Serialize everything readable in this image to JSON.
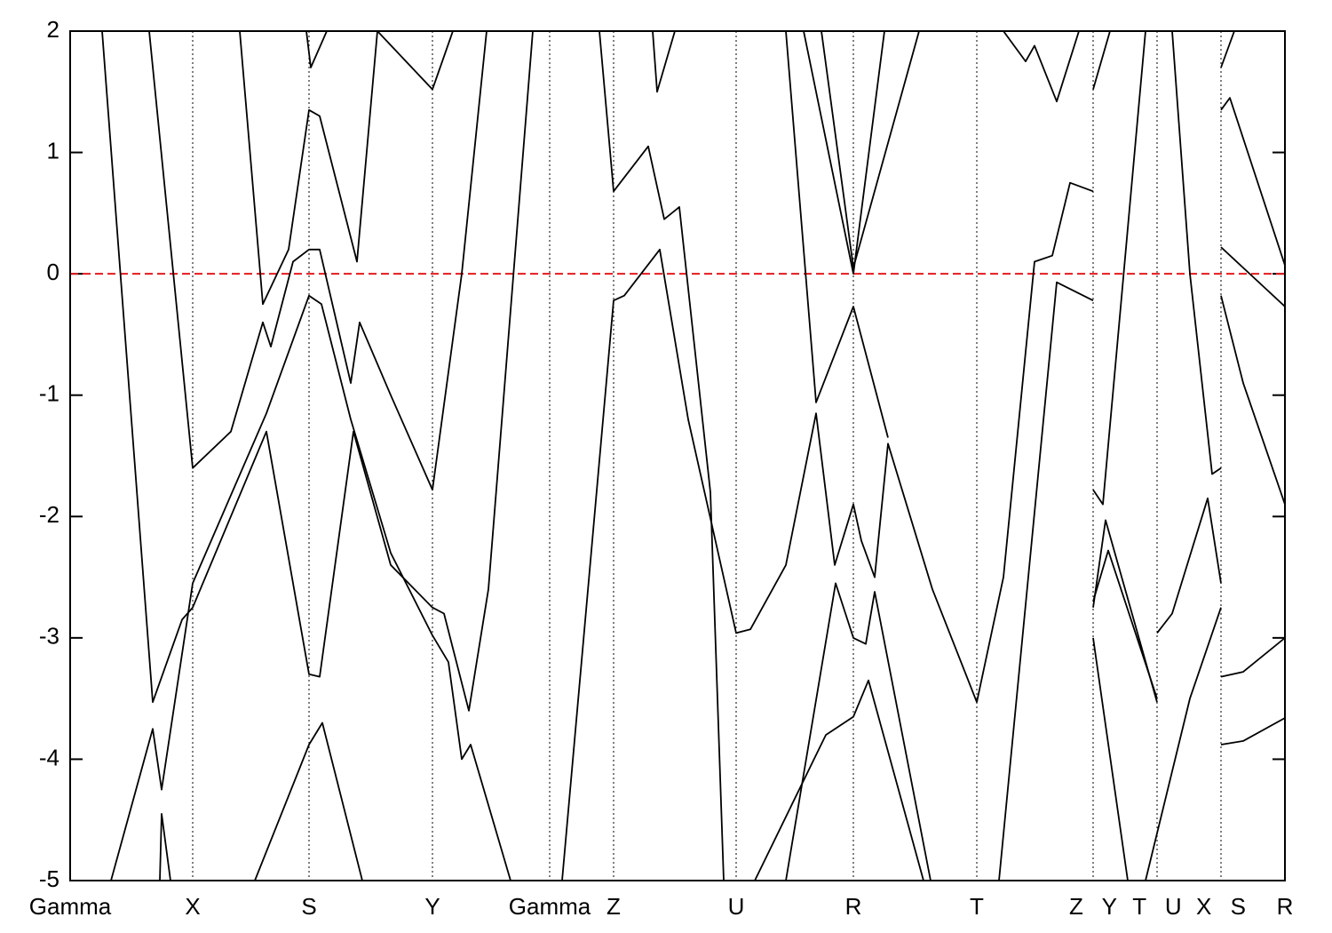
{
  "chart_data": {
    "type": "line",
    "color": "#000000",
    "xlim": [
      0,
      13.68
    ],
    "ylim": [
      -5,
      2
    ],
    "yticks": [
      -5,
      -4,
      -3,
      -2,
      -1,
      0,
      1,
      2
    ],
    "xticks": [
      {
        "value": 0,
        "label": "Gamma"
      },
      {
        "value": 1.38,
        "label": "X"
      },
      {
        "value": 2.69,
        "label": "S"
      },
      {
        "value": 4.08,
        "label": "Y"
      },
      {
        "value": 5.4,
        "label": "Gamma"
      },
      {
        "value": 6.12,
        "label": "Z"
      },
      {
        "value": 7.5,
        "label": "U"
      },
      {
        "value": 8.82,
        "label": "R"
      },
      {
        "value": 10.21,
        "label": "T"
      },
      {
        "value": 11.52,
        "label": "Z Y"
      },
      {
        "value": 12.24,
        "label": "T U"
      },
      {
        "value": 12.96,
        "label": "X S"
      },
      {
        "value": 13.68,
        "label": "R"
      }
    ],
    "reference_line": {
      "value": 0,
      "color": "#e41a1c"
    },
    "series": [
      {
        "x": [
          0.36,
          0.93,
          1.26,
          1.38,
          2.21,
          2.69,
          2.81,
          3.19,
          3.61,
          4.08,
          4.21,
          4.49,
          4.71,
          5.21
        ],
        "values": [
          2,
          -3.53,
          -2.85,
          -2.75,
          -1.3,
          -3.3,
          -3.32,
          -1.3,
          -2.4,
          -2.75,
          -2.8,
          -3.6,
          -2.6,
          2
        ]
      },
      {
        "x": [
          0.89,
          1.38,
          1.81,
          2.17,
          2.26,
          2.51,
          2.69,
          2.81,
          3.16,
          3.26,
          3.61,
          4.08,
          4.41,
          4.69
        ],
        "values": [
          2,
          -1.6,
          -1.3,
          -0.4,
          -0.6,
          0.1,
          0.2,
          0.2,
          -0.9,
          -0.4,
          -1.0,
          -1.78,
          0,
          2
        ]
      },
      {
        "x": [
          0.46,
          0.93,
          1.03,
          1.38,
          2.21,
          2.69,
          2.83,
          3.16,
          3.61,
          4.08,
          4.26,
          4.41,
          4.51,
          4.96
        ],
        "values": [
          -5,
          -3.75,
          -4.25,
          -2.55,
          -1.15,
          -0.18,
          -0.25,
          -1.2,
          -2.3,
          -2.98,
          -3.2,
          -4.0,
          -3.88,
          -5
        ]
      },
      {
        "x": [
          1.01,
          1.03,
          1.13
        ],
        "values": [
          -5,
          -4.45,
          -5
        ]
      },
      {
        "x": [
          2.08,
          2.69,
          2.84,
          3.29
        ],
        "values": [
          -5,
          -3.88,
          -3.7,
          -5
        ]
      },
      {
        "x": [
          1.91,
          2.17,
          2.46,
          2.69,
          2.81,
          3.23,
          3.46
        ],
        "values": [
          2,
          -0.25,
          0.2,
          1.35,
          1.3,
          0.1,
          2
        ]
      },
      {
        "x": [
          2.66,
          2.71,
          2.89
        ],
        "values": [
          2,
          1.7,
          2
        ]
      },
      {
        "x": [
          3.46,
          4.08,
          4.31
        ],
        "values": [
          2,
          1.52,
          2
        ]
      },
      {
        "x": [
          5.54,
          6.12,
          6.24,
          6.64,
          6.96,
          7.5,
          7.66,
          8.06,
          8.4,
          8.61,
          8.82,
          8.91,
          9.06,
          9.21,
          9.71,
          10.21,
          10.51,
          10.86,
          11.06,
          11.26,
          11.52
        ],
        "values": [
          -5,
          -0.22,
          -0.18,
          0.2,
          -1.2,
          -2.96,
          -2.93,
          -2.4,
          -1.15,
          -2.4,
          -1.9,
          -2.2,
          -2.5,
          -1.4,
          -2.6,
          -3.53,
          -2.5,
          0.1,
          0.15,
          0.75,
          0.68
        ]
      },
      {
        "x": [
          5.96,
          6.12,
          6.51,
          6.69,
          6.86,
          7.21,
          7.36
        ],
        "values": [
          2,
          0.68,
          1.05,
          0.45,
          0.55,
          -1.8,
          -5
        ]
      },
      {
        "x": [
          6.56,
          6.61,
          6.81
        ],
        "values": [
          2,
          1.5,
          2
        ]
      },
      {
        "x": [
          8.06,
          8.4,
          8.82,
          9.21
        ],
        "values": [
          2,
          -1.06,
          -0.27,
          -1.35
        ]
      },
      {
        "x": [
          8.26,
          8.82,
          9.17
        ],
        "values": [
          2,
          0,
          2
        ]
      },
      {
        "x": [
          8.46,
          8.82,
          9.56
        ],
        "values": [
          2,
          0.05,
          2
        ]
      },
      {
        "x": [
          8.06,
          8.62,
          8.82,
          8.96,
          9.06,
          9.69
        ],
        "values": [
          -5,
          -2.55,
          -3.0,
          -3.05,
          -2.62,
          -5
        ]
      },
      {
        "x": [
          7.71,
          8.51,
          8.82,
          8.99,
          9.61
        ],
        "values": [
          -5,
          -3.8,
          -3.65,
          -3.35,
          -5
        ]
      },
      {
        "x": [
          10.46,
          11.11,
          11.52
        ],
        "values": [
          -5,
          -0.07,
          -0.22
        ]
      },
      {
        "x": [
          10.51,
          10.76,
          10.86,
          11.11,
          11.36
        ],
        "values": [
          2,
          1.75,
          1.88,
          1.42,
          2
        ]
      },
      {
        "x": [
          11.52,
          11.71
        ],
        "values": [
          1.52,
          2
        ]
      },
      {
        "x": [
          11.52,
          11.63,
          12.11
        ],
        "values": [
          -1.78,
          -1.9,
          2
        ]
      },
      {
        "x": [
          11.52,
          11.66,
          12.24
        ],
        "values": [
          -2.75,
          -2.03,
          -3.53
        ]
      },
      {
        "x": [
          11.52,
          11.91
        ],
        "values": [
          -3.0,
          -5
        ]
      },
      {
        "x": [
          11.52,
          11.69,
          12.24
        ],
        "values": [
          -2.7,
          -2.28,
          -3.5
        ]
      },
      {
        "x": [
          12.41,
          12.61,
          12.86,
          12.96
        ],
        "values": [
          2,
          0,
          -1.65,
          -1.6
        ]
      },
      {
        "x": [
          12.24,
          12.41,
          12.81,
          12.96
        ],
        "values": [
          -2.96,
          -2.8,
          -1.85,
          -2.55
        ]
      },
      {
        "x": [
          12.11,
          12.61,
          12.96
        ],
        "values": [
          -5,
          -3.5,
          -2.75
        ]
      },
      {
        "x": [
          12.96,
          13.11
        ],
        "values": [
          1.7,
          2
        ]
      },
      {
        "x": [
          12.96,
          13.06,
          13.68
        ],
        "values": [
          1.35,
          1.45,
          0.07
        ]
      },
      {
        "x": [
          12.96,
          13.68
        ],
        "values": [
          0.22,
          -0.27
        ]
      },
      {
        "x": [
          12.96,
          13.21,
          13.68
        ],
        "values": [
          -0.18,
          -0.9,
          -1.9
        ]
      },
      {
        "x": [
          12.96,
          13.21,
          13.68
        ],
        "values": [
          -3.32,
          -3.28,
          -3.0
        ]
      },
      {
        "x": [
          12.96,
          13.21,
          13.68
        ],
        "values": [
          -3.88,
          -3.85,
          -3.66
        ]
      }
    ]
  }
}
